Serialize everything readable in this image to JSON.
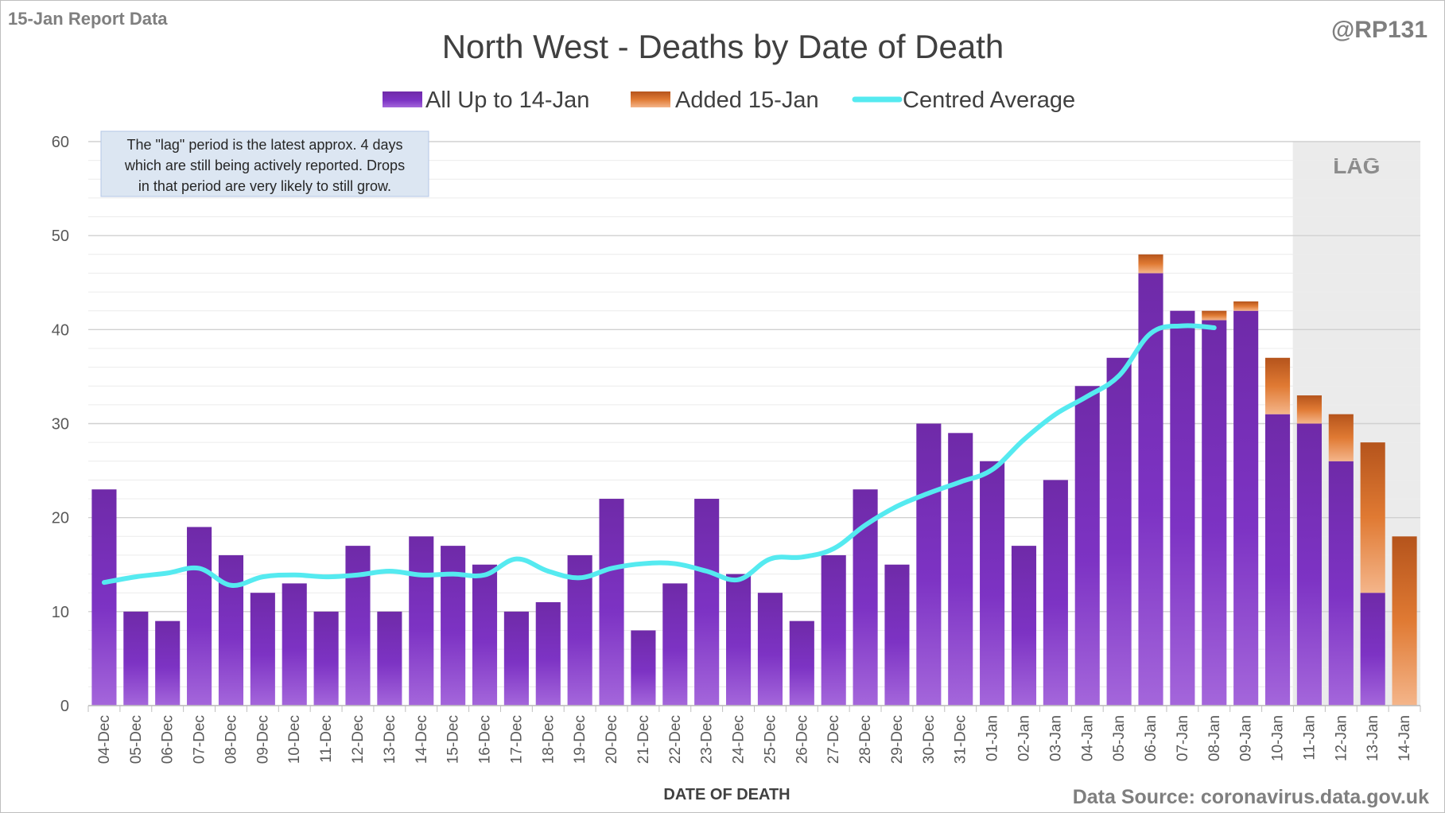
{
  "header": {
    "report_label": "15-Jan Report Data",
    "handle": "@RP131"
  },
  "footer": {
    "source": "Data Source: coronavirus.data.gov.uk"
  },
  "note_lines": [
    "The \"lag\" period is the latest approx. 4 days",
    "which are still being actively reported. Drops",
    "in that period are very likely to still grow."
  ],
  "colors": {
    "base_series": "#7b2fbf",
    "added_series": "#e07a33",
    "average_line": "#55eaf0",
    "lag_shade": "#ebebeb",
    "note_bg": "#dce6f2"
  },
  "chart_data": {
    "type": "bar",
    "title": "North West - Deaths by Date of Death",
    "xlabel": "DATE OF DEATH",
    "ylabel": "",
    "ylim": [
      0,
      60
    ],
    "yticks": [
      0,
      10,
      20,
      30,
      40,
      50,
      60
    ],
    "grid": true,
    "legend_position": "top",
    "stacked": true,
    "lag_label": "LAG",
    "lag_categories": [
      "11-Jan",
      "12-Jan",
      "13-Jan",
      "14-Jan"
    ],
    "categories": [
      "04-Dec",
      "05-Dec",
      "06-Dec",
      "07-Dec",
      "08-Dec",
      "09-Dec",
      "10-Dec",
      "11-Dec",
      "12-Dec",
      "13-Dec",
      "14-Dec",
      "15-Dec",
      "16-Dec",
      "17-Dec",
      "18-Dec",
      "19-Dec",
      "20-Dec",
      "21-Dec",
      "22-Dec",
      "23-Dec",
      "24-Dec",
      "25-Dec",
      "26-Dec",
      "27-Dec",
      "28-Dec",
      "29-Dec",
      "30-Dec",
      "31-Dec",
      "01-Jan",
      "02-Jan",
      "03-Jan",
      "04-Jan",
      "05-Jan",
      "06-Jan",
      "07-Jan",
      "08-Jan",
      "09-Jan",
      "10-Jan",
      "11-Jan",
      "12-Jan",
      "13-Jan",
      "14-Jan"
    ],
    "series": [
      {
        "name": "All Up to 14-Jan",
        "kind": "bar",
        "values": [
          23,
          10,
          9,
          19,
          16,
          12,
          13,
          10,
          17,
          10,
          18,
          17,
          15,
          10,
          11,
          16,
          22,
          8,
          13,
          22,
          14,
          12,
          9,
          16,
          23,
          15,
          30,
          29,
          26,
          17,
          24,
          34,
          37,
          46,
          42,
          41,
          42,
          31,
          30,
          26,
          12,
          0
        ]
      },
      {
        "name": "Added 15-Jan",
        "kind": "bar",
        "values": [
          0,
          0,
          0,
          0,
          0,
          0,
          0,
          0,
          0,
          0,
          0,
          0,
          0,
          0,
          0,
          0,
          0,
          0,
          0,
          0,
          0,
          0,
          0,
          0,
          0,
          0,
          0,
          0,
          0,
          0,
          0,
          0,
          0,
          2,
          0,
          1,
          1,
          6,
          3,
          5,
          16,
          18
        ]
      },
      {
        "name": "Centred Average",
        "kind": "line",
        "values": [
          13.1,
          13.7,
          14.1,
          14.6,
          12.8,
          13.7,
          13.9,
          13.7,
          13.9,
          14.3,
          13.9,
          14.0,
          13.9,
          15.6,
          14.3,
          13.6,
          14.6,
          15.1,
          15.1,
          14.3,
          13.4,
          15.6,
          15.8,
          16.7,
          19.2,
          21.2,
          22.6,
          23.8,
          25.1,
          28.3,
          31.0,
          32.9,
          35.1,
          39.6,
          40.4,
          40.2,
          null,
          null,
          null,
          null,
          null,
          null
        ]
      }
    ]
  }
}
